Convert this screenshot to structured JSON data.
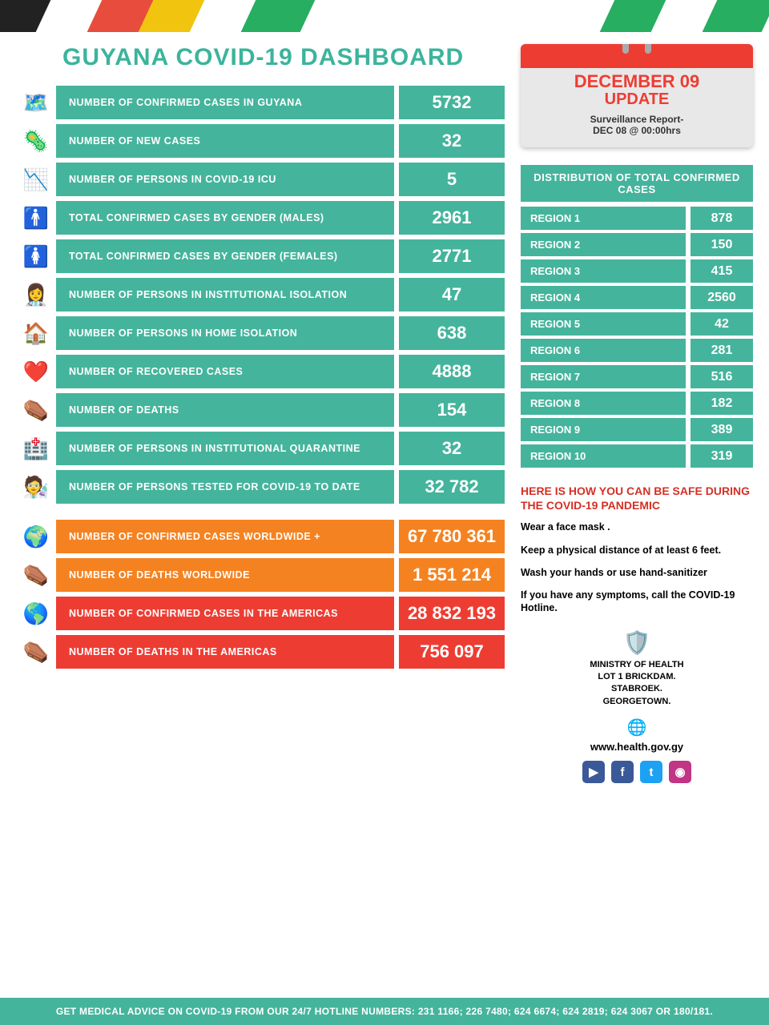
{
  "title": "GUYANA COVID-19 DASHBOARD",
  "stats": [
    {
      "icon": "🗺️",
      "label": "NUMBER OF CONFIRMED CASES IN GUYANA",
      "value": "5732",
      "cls": "teal"
    },
    {
      "icon": "🦠",
      "label": "NUMBER OF NEW CASES",
      "value": "32",
      "cls": "teal"
    },
    {
      "icon": "📉",
      "label": "NUMBER OF PERSONS  IN COVID-19 ICU",
      "value": "5",
      "cls": "teal"
    },
    {
      "icon": "🚹",
      "label": "TOTAL CONFIRMED CASES BY GENDER (MALES)",
      "value": "2961",
      "cls": "teal"
    },
    {
      "icon": "🚺",
      "label": "TOTAL CONFIRMED CASES BY GENDER (FEMALES)",
      "value": "2771",
      "cls": "teal"
    },
    {
      "icon": "👩‍⚕️",
      "label": "NUMBER OF PERSONS IN INSTITUTIONAL ISOLATION",
      "value": "47",
      "cls": "teal"
    },
    {
      "icon": "🏠",
      "label": "NUMBER OF PERSONS IN HOME ISOLATION",
      "value": "638",
      "cls": "teal"
    },
    {
      "icon": "❤️",
      "label": "NUMBER OF RECOVERED CASES",
      "value": "4888",
      "cls": "teal"
    },
    {
      "icon": "⚰️",
      "label": "NUMBER OF DEATHS",
      "value": "154",
      "cls": "teal"
    },
    {
      "icon": "🏥",
      "label": "NUMBER OF PERSONS IN INSTITUTIONAL QUARANTINE",
      "value": "32",
      "cls": "teal"
    },
    {
      "icon": "🧑‍🔬",
      "label": "NUMBER OF PERSONS TESTED FOR COVID-19 TO DATE",
      "value": "32 782",
      "cls": "teal"
    }
  ],
  "world": [
    {
      "icon": "🌍",
      "label": "NUMBER  OF CONFIRMED CASES WORLDWIDE +",
      "value": "67 780 361",
      "cls": "orange"
    },
    {
      "icon": "⚰️",
      "label": "NUMBER OF DEATHS WORLDWIDE",
      "value": "1 551 214",
      "cls": "orange"
    },
    {
      "icon": "🌎",
      "label": "NUMBER OF CONFIRMED CASES IN THE AMERICAS",
      "value": "28 832 193",
      "cls": "red"
    },
    {
      "icon": "⚰️",
      "label": "NUMBER OF DEATHS IN THE AMERICAS",
      "value": "756 097",
      "cls": "red"
    }
  ],
  "calendar": {
    "date": "DECEMBER 09",
    "update": "UPDATE",
    "sub1": "Surveillance Report-",
    "sub2": "DEC 08 @ 00:00hrs"
  },
  "distribution": {
    "title": "DISTRIBUTION OF TOTAL CONFIRMED CASES",
    "rows": [
      {
        "label": "REGION 1",
        "value": "878"
      },
      {
        "label": "REGION 2",
        "value": "150"
      },
      {
        "label": "REGION 3",
        "value": "415"
      },
      {
        "label": "REGION 4",
        "value": "2560"
      },
      {
        "label": "REGION 5",
        "value": "42"
      },
      {
        "label": "REGION 6",
        "value": "281"
      },
      {
        "label": "REGION 7",
        "value": "516"
      },
      {
        "label": "REGION 8",
        "value": "182"
      },
      {
        "label": "REGION 9",
        "value": "389"
      },
      {
        "label": "REGION 10",
        "value": "319"
      }
    ]
  },
  "safety": {
    "title": "HERE IS HOW YOU CAN BE SAFE DURING THE COVID-19 PANDEMIC",
    "items": [
      "Wear a face mask .",
      "Keep a physical distance of at least 6 feet.",
      "Wash your hands or use hand-sanitizer",
      "If you have any symptoms, call the COVID-19 Hotline."
    ]
  },
  "ministry": {
    "line1": "MINISTRY OF HEALTH",
    "line2": "LOT 1 BRICKDAM.",
    "line3": "STABROEK.",
    "line4": "GEORGETOWN.",
    "url": "www.health.gov.gy"
  },
  "socials": [
    "▶",
    "f",
    "t",
    "◉"
  ],
  "footer": "GET MEDICAL ADVICE ON COVID-19 FROM OUR 24/7 HOTLINE NUMBERS: 231 1166; 226 7480; 624 6674; 624 2819; 624 3067 OR 180/181."
}
